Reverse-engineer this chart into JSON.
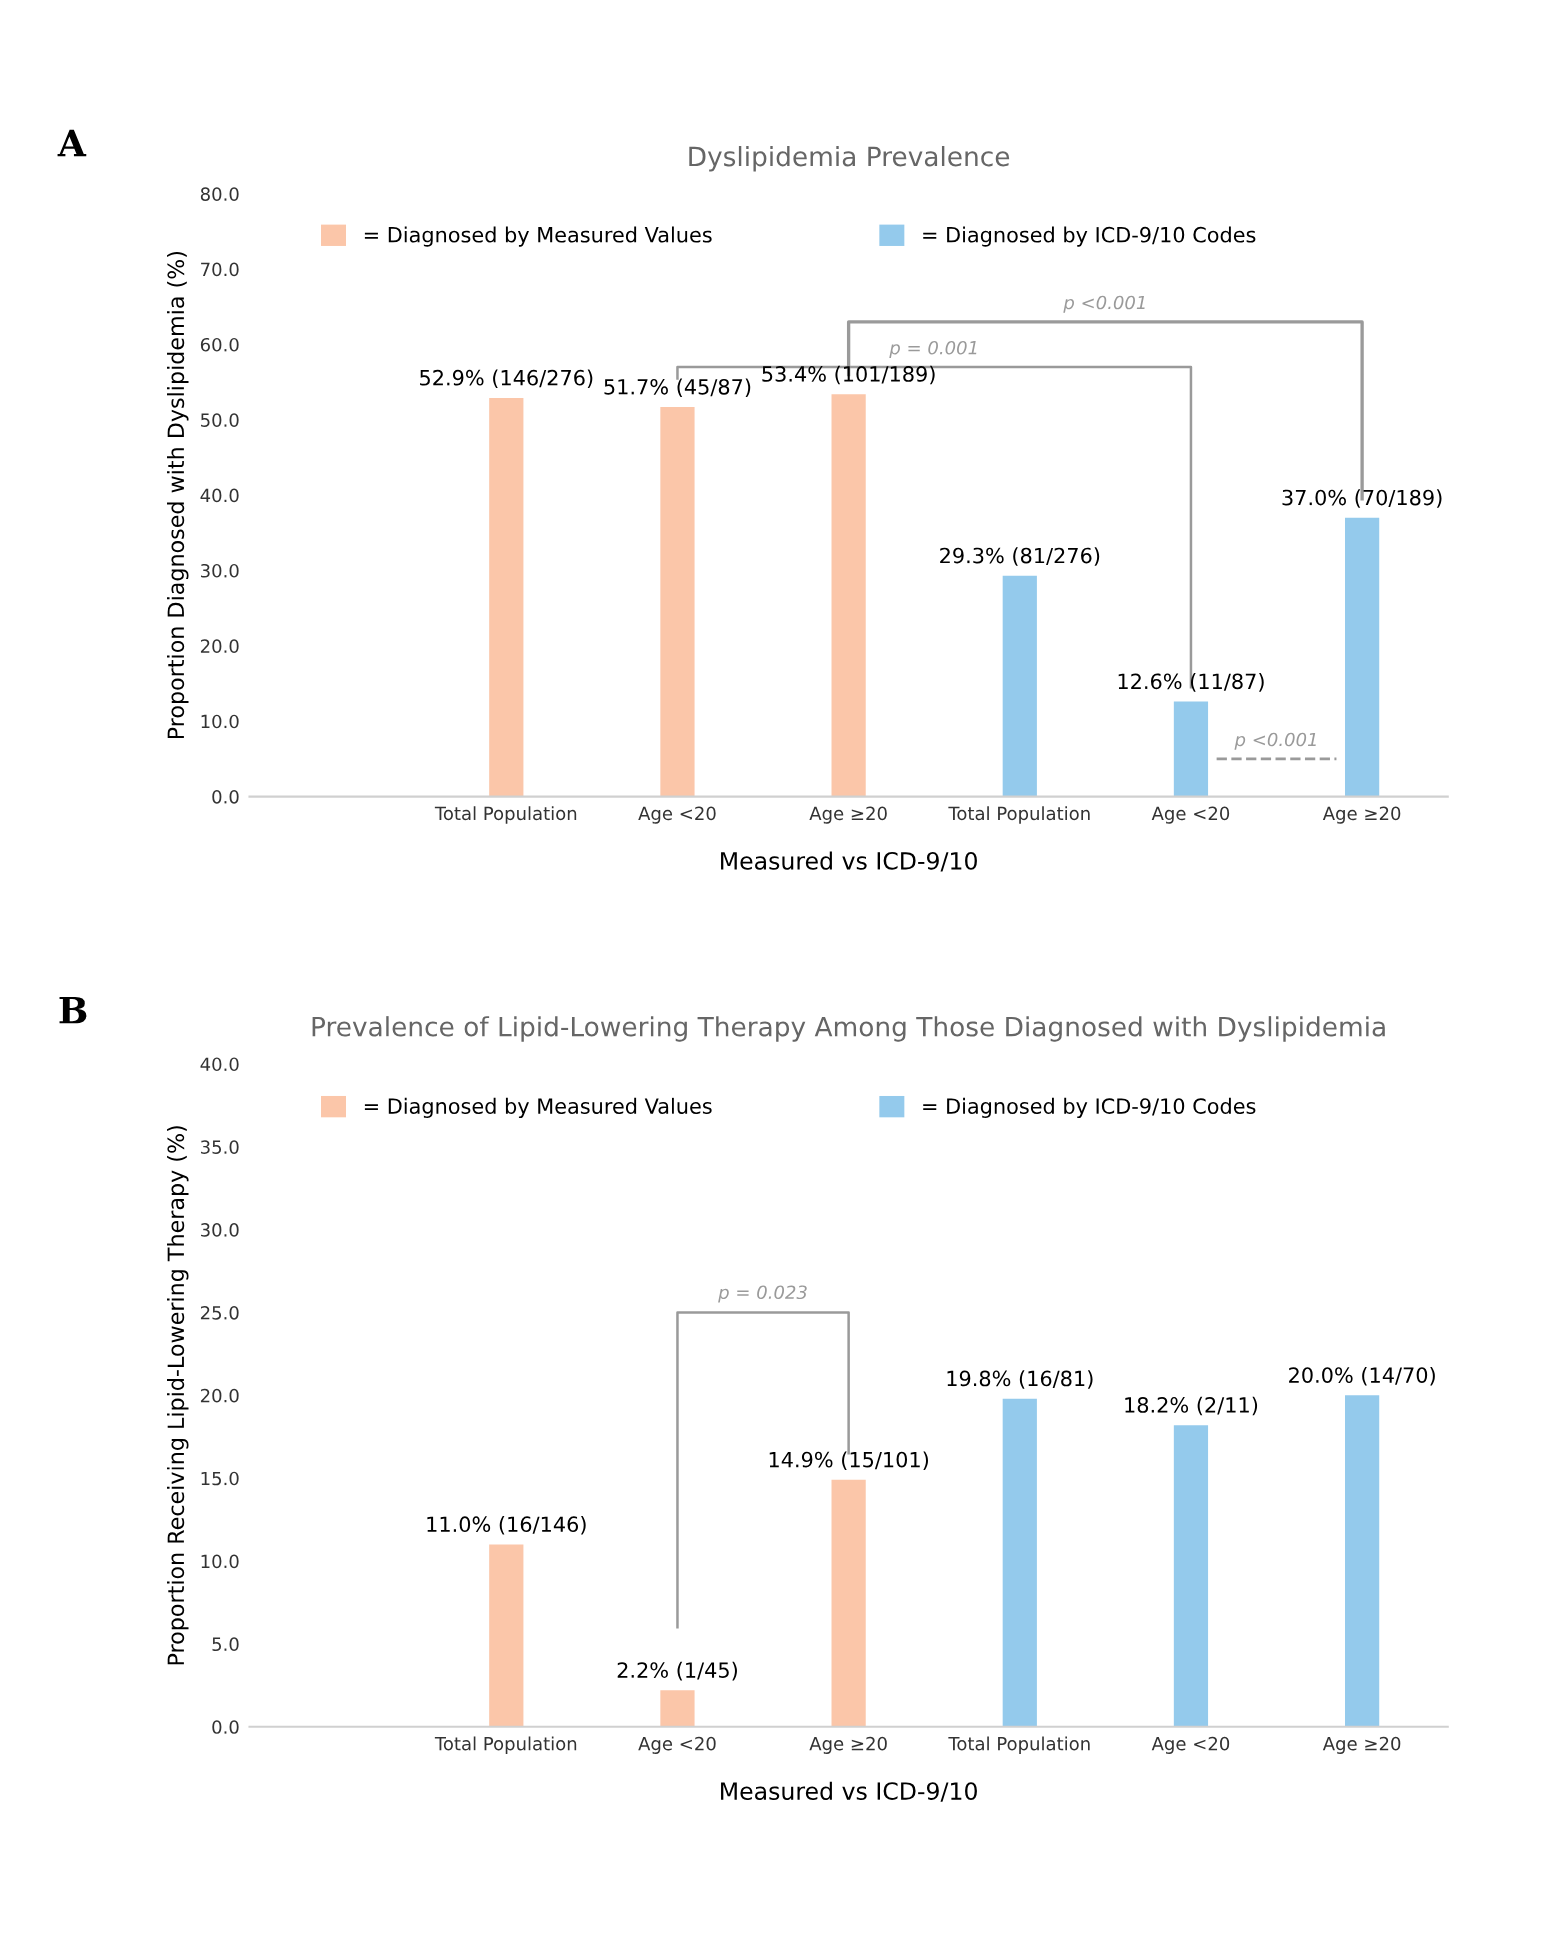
{
  "chart_data": [
    {
      "type": "bar",
      "title": "Dyslipidemia Prevalence",
      "xlabel": "Measured vs ICD-9/10",
      "ylabel": "Proportion Diagnosed with Dyslipidemia (%)",
      "categories": [
        null,
        "Total Population",
        "Age <20",
        "Age ≥20",
        "Total Population",
        "Age <20",
        "Age ≥20"
      ],
      "series": [
        {
          "name": "= Diagnosed by Measured Values",
          "color": "#fbc6a9",
          "values": [
            null,
            52.9,
            51.7,
            53.4,
            null,
            null,
            null
          ],
          "value_labels": [
            null,
            "52.9% (146/276)",
            "51.7% (45/87)",
            "53.4% (101/189)",
            null,
            null,
            null
          ]
        },
        {
          "name": "= Diagnosed by ICD-9/10 Codes",
          "color": "#94caec",
          "values": [
            null,
            null,
            null,
            null,
            29.3,
            12.6,
            37.0
          ],
          "value_labels": [
            null,
            null,
            null,
            null,
            "29.3% (81/276)",
            "12.6% (11/87)",
            "37.0% (70/189)"
          ]
        }
      ],
      "ylim": [
        0,
        80
      ],
      "yticks": [
        {
          "value": 0,
          "label": "0.0"
        },
        {
          "value": 10,
          "label": "10.0"
        },
        {
          "value": 20,
          "label": "20.0"
        },
        {
          "value": 30,
          "label": "30.0"
        },
        {
          "value": 40,
          "label": "40.0"
        },
        {
          "value": 50,
          "label": "50.0"
        },
        {
          "value": 60,
          "label": "60.0"
        },
        {
          "value": 70,
          "label": "70.0"
        },
        {
          "value": 80,
          "label": "80.0"
        }
      ],
      "legend": "top",
      "grid": false,
      "annotations": [
        "A",
        "p = 0.001",
        "p <0.001",
        "p <0.001"
      ]
    },
    {
      "type": "bar",
      "title": "Prevalence of Lipid-Lowering Therapy Among Those Diagnosed with Dyslipidemia",
      "xlabel": "Measured vs ICD-9/10",
      "ylabel": "Proportion Receiving Lipid-Lowering Therapy (%)",
      "categories": [
        null,
        "Total Population",
        "Age <20",
        "Age ≥20",
        "Total Population",
        "Age <20",
        "Age ≥20"
      ],
      "series": [
        {
          "name": "= Diagnosed by Measured Values",
          "color": "#fbc6a9",
          "values": [
            null,
            11.0,
            2.2,
            14.9,
            null,
            null,
            null
          ],
          "value_labels": [
            null,
            "11.0% (16/146)",
            "2.2% (1/45)",
            "14.9% (15/101)",
            null,
            null,
            null
          ]
        },
        {
          "name": "= Diagnosed by ICD-9/10 Codes",
          "color": "#94caec",
          "values": [
            null,
            null,
            null,
            null,
            19.8,
            18.2,
            20.0
          ],
          "value_labels": [
            null,
            null,
            null,
            null,
            "19.8% (16/81)",
            "18.2% (2/11)",
            "20.0% (14/70)"
          ]
        }
      ],
      "ylim": [
        0,
        40
      ],
      "yticks": [
        {
          "value": 0,
          "label": "0.0"
        },
        {
          "value": 5,
          "label": "5.0"
        },
        {
          "value": 10,
          "label": "10.0"
        },
        {
          "value": 15,
          "label": "15.0"
        },
        {
          "value": 20,
          "label": "20.0"
        },
        {
          "value": 25,
          "label": "25.0"
        },
        {
          "value": 30,
          "label": "30.0"
        },
        {
          "value": 35,
          "label": "35.0"
        },
        {
          "value": 40,
          "label": "40.0"
        }
      ],
      "legend": "top",
      "grid": false,
      "annotations": [
        "B",
        "p = 0.023"
      ]
    }
  ]
}
